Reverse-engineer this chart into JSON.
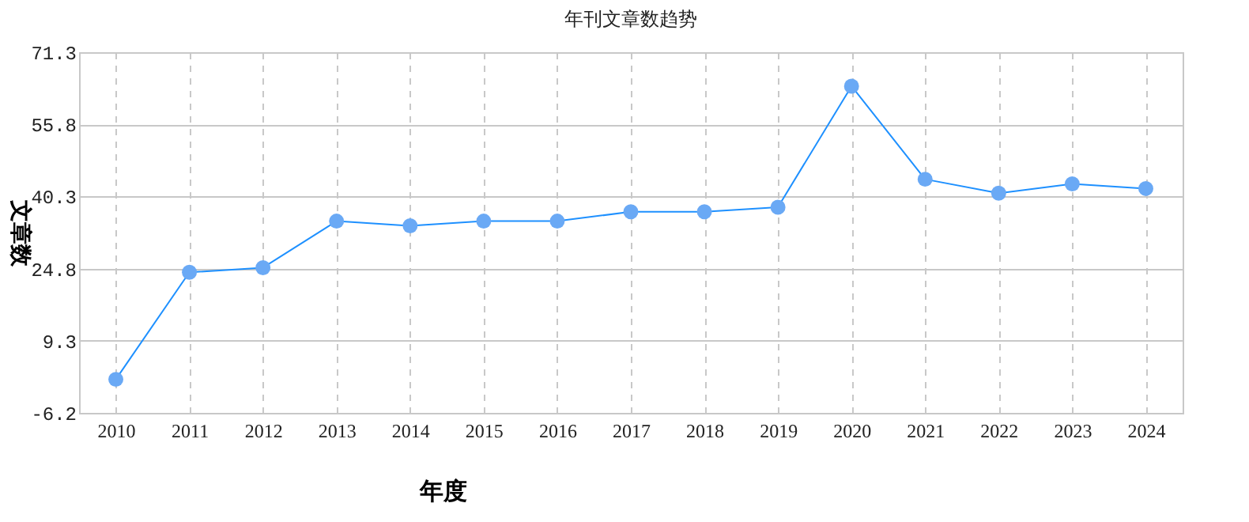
{
  "chart_data": {
    "type": "line",
    "title": "年刊文章数趋势",
    "xlabel": "年度",
    "ylabel": "文章数",
    "categories": [
      "2010",
      "2011",
      "2012",
      "2013",
      "2014",
      "2015",
      "2016",
      "2017",
      "2018",
      "2019",
      "2020",
      "2021",
      "2022",
      "2023",
      "2024"
    ],
    "series": [
      {
        "color": "#1e90ff",
        "values": [
          1,
          24,
          25,
          35,
          34,
          35,
          35,
          37,
          37,
          38,
          64,
          44,
          41,
          43,
          42
        ]
      }
    ],
    "ylim": [
      -6.2,
      71.3
    ],
    "yticks": [
      -6.2,
      9.3,
      24.8,
      40.3,
      55.8,
      71.3
    ],
    "grid": true,
    "marker": "circle",
    "line_style": "solid"
  }
}
